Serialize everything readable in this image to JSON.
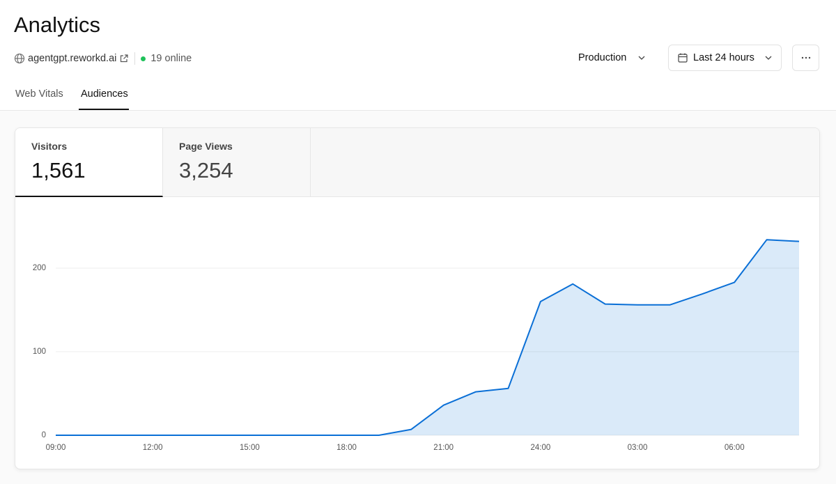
{
  "header": {
    "title": "Analytics",
    "domain": "agentgpt.reworkd.ai",
    "online": "19 online",
    "environment": "Production",
    "range": "Last 24 hours"
  },
  "tabs": [
    "Web Vitals",
    "Audiences"
  ],
  "stats": [
    {
      "label": "Visitors",
      "value": "1,561"
    },
    {
      "label": "Page Views",
      "value": "3,254"
    }
  ],
  "chart_data": {
    "type": "area",
    "categories": [
      "09:00",
      null,
      null,
      "12:00",
      null,
      null,
      "15:00",
      null,
      null,
      "18:00",
      null,
      null,
      "21:00",
      null,
      null,
      "24:00",
      null,
      null,
      "03:00",
      null,
      null,
      "06:00",
      null,
      null
    ],
    "values": [
      0,
      0,
      0,
      0,
      0,
      0,
      0,
      0,
      0,
      0,
      0,
      7,
      36,
      52,
      56,
      160,
      181,
      157,
      156,
      156,
      169,
      183,
      234,
      232
    ],
    "color": "#0a6fd6",
    "ylim": [
      0,
      260
    ],
    "yticks": [
      0,
      100,
      200
    ],
    "grid": true
  }
}
